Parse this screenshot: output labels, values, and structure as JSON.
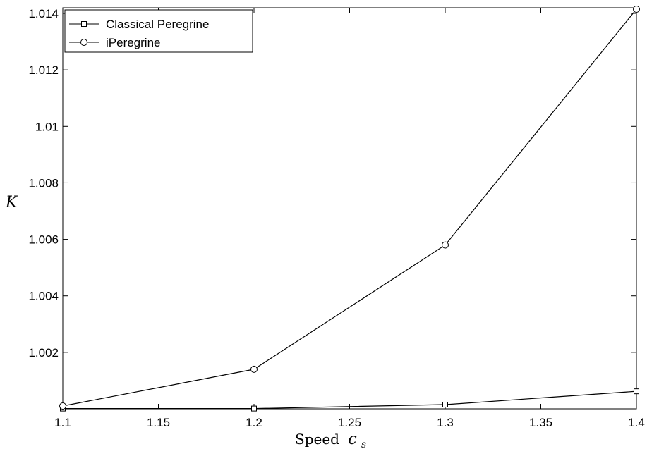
{
  "chart_data": {
    "type": "line",
    "x": [
      1.1,
      1.2,
      1.3,
      1.4
    ],
    "series": [
      {
        "name": "Classical Peregrine",
        "marker": "square",
        "values": [
          1.00001,
          1.00001,
          1.00015,
          1.00062
        ]
      },
      {
        "name": "iPeregrine",
        "marker": "circle",
        "values": [
          1.0001,
          1.0014,
          1.0058,
          1.01415
        ]
      }
    ],
    "xlabel_text": "Speed",
    "xlabel_var": "c",
    "xlabel_sub": "s",
    "ylabel": "K",
    "xlim": [
      1.1,
      1.4
    ],
    "ylim": [
      1.0,
      1.0142
    ],
    "xticks": [
      1.1,
      1.15,
      1.2,
      1.25,
      1.3,
      1.35,
      1.4
    ],
    "xtick_labels": [
      "1.1",
      "1.15",
      "1.2",
      "1.25",
      "1.3",
      "1.35",
      "1.4"
    ],
    "yticks": [
      1.002,
      1.004,
      1.006,
      1.008,
      1.01,
      1.012,
      1.014
    ],
    "ytick_labels": [
      "1.002",
      "1.004",
      "1.006",
      "1.008",
      "1.01",
      "1.012",
      "1.014"
    ],
    "grid": false,
    "legend_position": "top-left",
    "line_color": "#000000"
  }
}
